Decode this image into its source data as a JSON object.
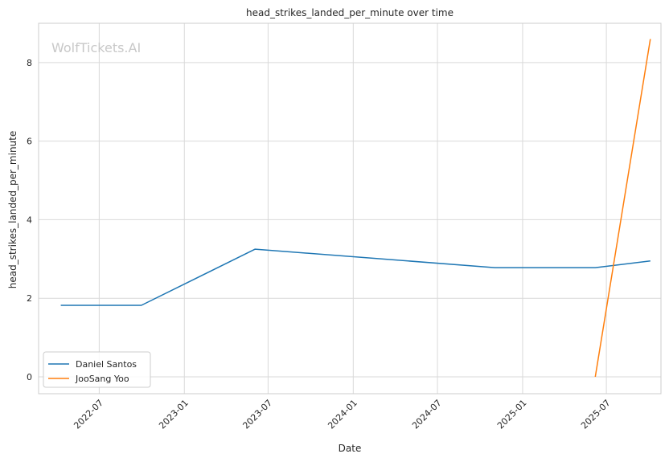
{
  "chart_data": {
    "type": "line",
    "title": "head_strikes_landed_per_minute over time",
    "xlabel": "Date",
    "ylabel": "head_strikes_landed_per_minute",
    "watermark": "WolfTickets.AI",
    "x_type": "date",
    "xlim": [
      "2022-02-20",
      "2025-10-27"
    ],
    "ylim": [
      -0.43,
      9.0
    ],
    "x_ticks": [
      "2022-07-01",
      "2023-01-01",
      "2023-07-01",
      "2024-01-01",
      "2024-07-01",
      "2025-01-01",
      "2025-07-01"
    ],
    "x_tick_labels": [
      "2022-07",
      "2023-01",
      "2023-07",
      "2024-01",
      "2024-07",
      "2025-01",
      "2025-07"
    ],
    "y_ticks": [
      0,
      2,
      4,
      6,
      8
    ],
    "y_tick_labels": [
      "0",
      "2",
      "4",
      "6",
      "8"
    ],
    "grid": true,
    "legend_position": "lower-left",
    "series": [
      {
        "name": "Daniel Santos",
        "color": "#1f77b4",
        "points": [
          {
            "x": "2022-04-09",
            "y": 1.82
          },
          {
            "x": "2022-09-30",
            "y": 1.82
          },
          {
            "x": "2023-06-03",
            "y": 3.25
          },
          {
            "x": "2024-11-02",
            "y": 2.78
          },
          {
            "x": "2025-06-07",
            "y": 2.78
          },
          {
            "x": "2025-10-04",
            "y": 2.95
          }
        ]
      },
      {
        "name": "JooSang Yoo",
        "color": "#ff7f0e",
        "points": [
          {
            "x": "2025-06-07",
            "y": 0.0
          },
          {
            "x": "2025-10-04",
            "y": 8.6
          }
        ]
      }
    ]
  }
}
